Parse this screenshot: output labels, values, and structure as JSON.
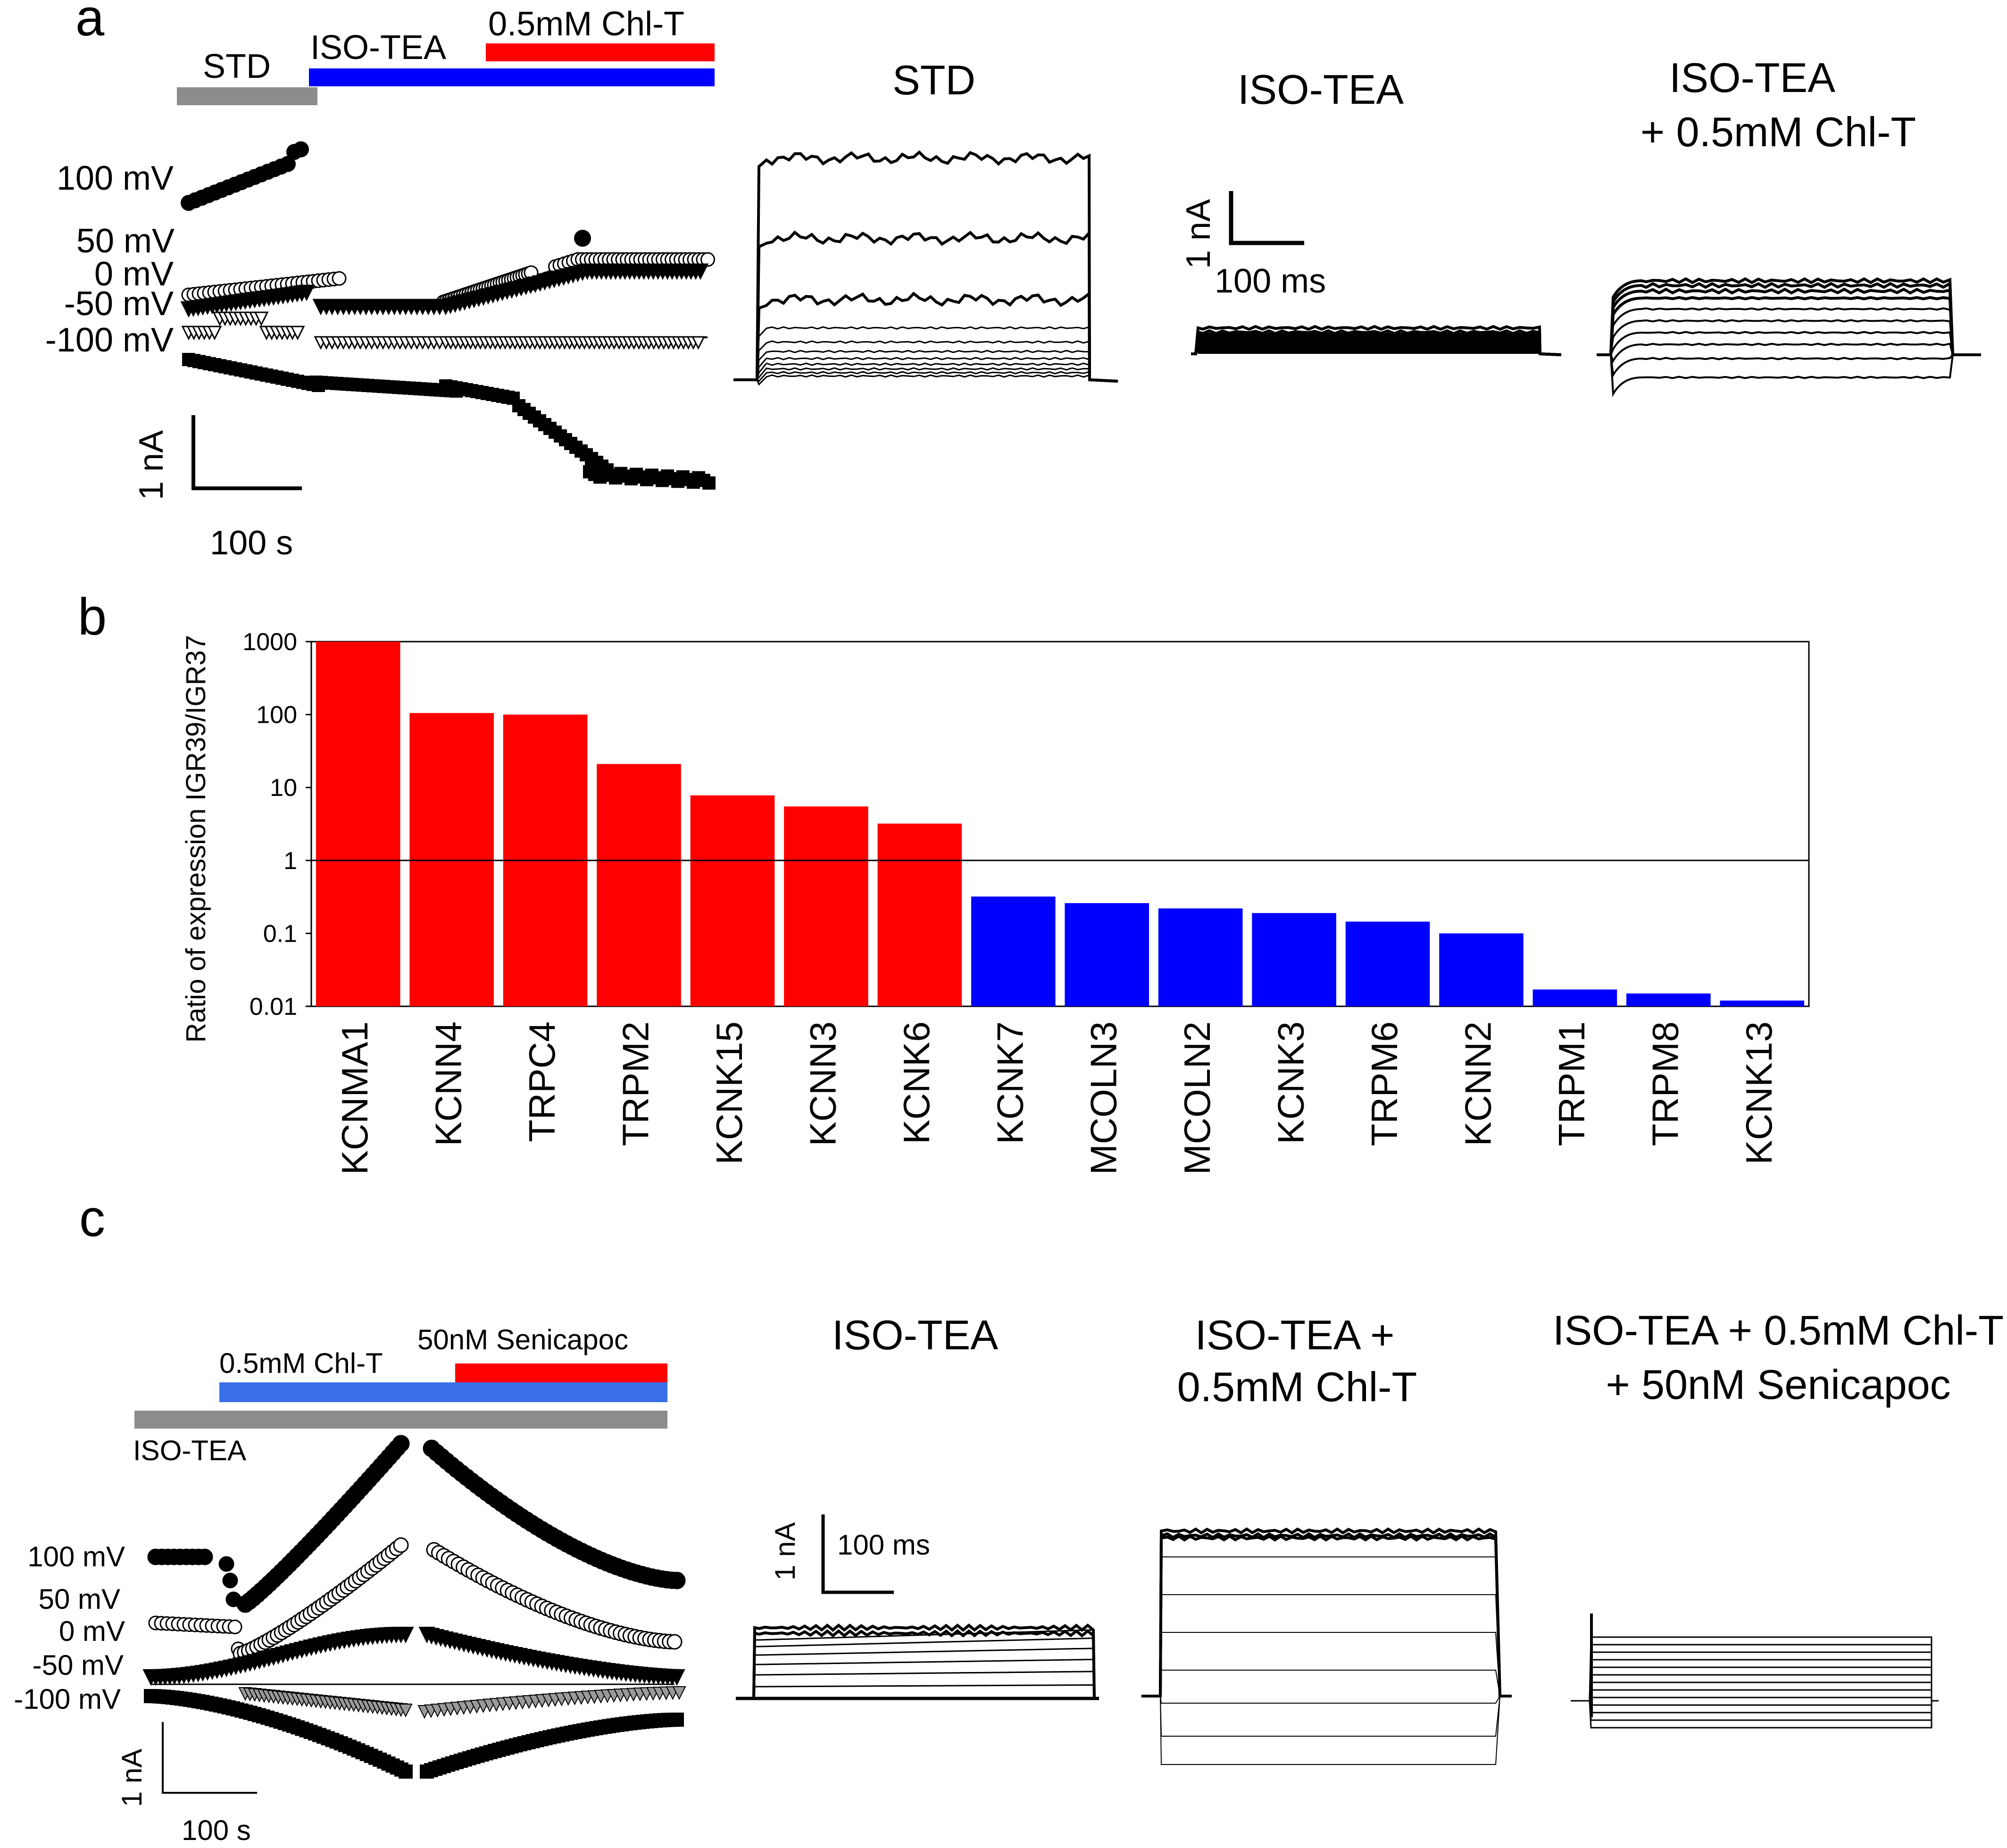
{
  "panel_labels": [
    "a",
    "b",
    "c"
  ],
  "colors": {
    "red": "#ff0000",
    "blue": "#0000ff",
    "light_blue": "#3a6fe8",
    "gray": "#8c8c8c",
    "black": "#000000"
  },
  "panel_a": {
    "bars": {
      "std": "STD",
      "iso_tea": "ISO-TEA",
      "chl_t": "0.5mM Chl-T"
    },
    "voltage_labels": [
      "100 mV",
      "50 mV",
      "0 mV",
      "-50 mV",
      "-100 mV"
    ],
    "scale_current": "1 nA",
    "scale_time": "100 s",
    "trace_titles": {
      "std": "STD",
      "iso_tea": "ISO-TEA",
      "iso_chl_1": "ISO-TEA",
      "iso_chl_2": "+ 0.5mM Chl-T"
    },
    "trace_scale_current": "1 nA",
    "trace_scale_time": "100 ms"
  },
  "panel_c": {
    "bars": {
      "chl_t": "0.5mM  Chl-T",
      "senicapoc": "50nM  Senicapoc",
      "iso_tea": "ISO-TEA"
    },
    "voltage_labels": [
      "100 mV",
      "50 mV",
      "0 mV",
      "-50 mV",
      "-100 mV"
    ],
    "scale_current": "1 nA",
    "scale_time": "100 s",
    "trace_titles": {
      "iso_tea": "ISO-TEA",
      "iso_chl_1": "ISO-TEA   +",
      "iso_chl_2": "0.5mM Chl-T",
      "iso_chl_sen_1": "ISO-TEA   + 0.5mM Chl-T",
      "iso_chl_sen_2": "+ 50nM Senicapoc"
    },
    "trace_scale_current": "1 nA",
    "trace_scale_time": "100 ms"
  },
  "chart_data": {
    "type": "bar",
    "title": "",
    "xlabel": "",
    "ylabel": "Ratio of expression IGR39/IGR37",
    "yscale": "log",
    "ylim": [
      0.01,
      1000
    ],
    "yticks": [
      "1000",
      "100",
      "10",
      "1",
      "0.1",
      "0.01"
    ],
    "ytick_values": [
      1000,
      100,
      10,
      1,
      0.1,
      0.01
    ],
    "reference_line": 1,
    "categories": [
      "KCNMA1",
      "KCNN4",
      "TRPC4",
      "TRPM2",
      "KCNK15",
      "KCNN3",
      "KCNK6",
      "KCNK7",
      "MCOLN3",
      "MCOLN2",
      "KCNK3",
      "TRPM6",
      "KCNN2",
      "TRPM1",
      "TRPM8",
      "KCNK13"
    ],
    "values": [
      1000,
      105,
      100,
      21,
      7.8,
      5.5,
      3.2,
      0.32,
      0.26,
      0.22,
      0.19,
      0.145,
      0.1,
      0.017,
      0.015,
      0.012
    ],
    "bar_colors": [
      "#ff0000",
      "#ff0000",
      "#ff0000",
      "#ff0000",
      "#ff0000",
      "#ff0000",
      "#ff0000",
      "#0000ff",
      "#0000ff",
      "#0000ff",
      "#0000ff",
      "#0000ff",
      "#0000ff",
      "#0000ff",
      "#0000ff",
      "#0000ff"
    ]
  }
}
